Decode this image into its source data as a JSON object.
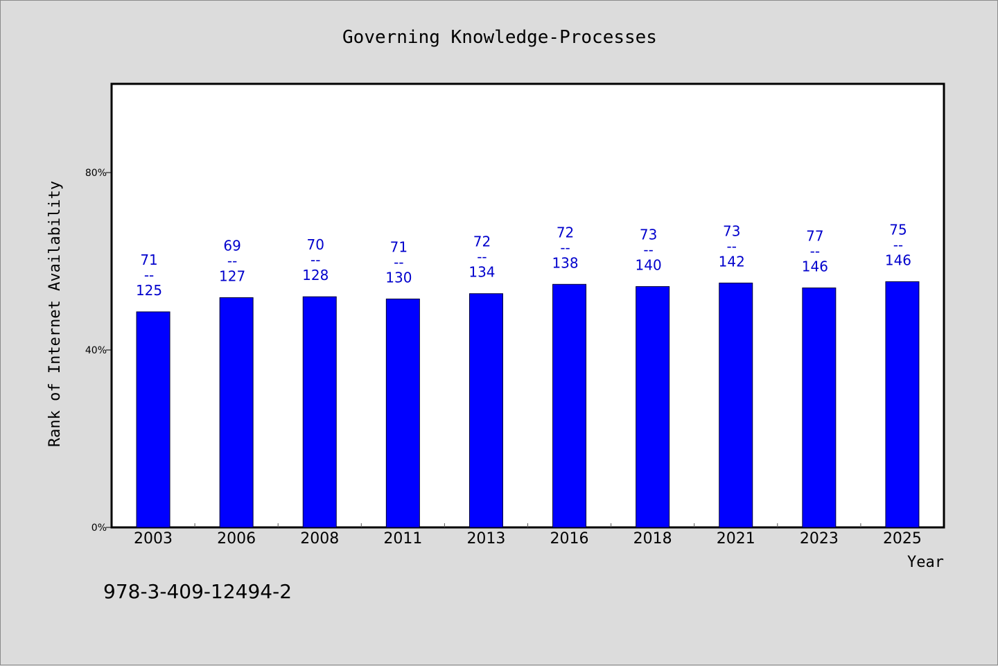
{
  "chart_data": {
    "type": "bar",
    "title": "Governing Knowledge-Processes",
    "xlabel": "Year",
    "ylabel": "Rank of Internet Availability",
    "categories": [
      "2003",
      "2006",
      "2008",
      "2011",
      "2013",
      "2016",
      "2018",
      "2021",
      "2023",
      "2025"
    ],
    "values": [
      48.6,
      51.8,
      52.0,
      51.5,
      52.7,
      54.8,
      54.3,
      55.1,
      54.0,
      55.4
    ],
    "rank_labels": [
      "71",
      "69",
      "70",
      "71",
      "72",
      "72",
      "73",
      "73",
      "77",
      "75"
    ],
    "label_separator": "--",
    "total_labels": [
      "125",
      "127",
      "128",
      "130",
      "134",
      "138",
      "140",
      "142",
      "146",
      "146"
    ],
    "ylim": [
      0,
      100
    ],
    "yticks": [
      0,
      40,
      80
    ],
    "ytick_labels": [
      "0%",
      "40%",
      "80%"
    ],
    "grid": false,
    "bar_color": "#0000ff",
    "label_color": "#0000cc"
  },
  "footer": {
    "isbn": "978-3-409-12494-2"
  }
}
